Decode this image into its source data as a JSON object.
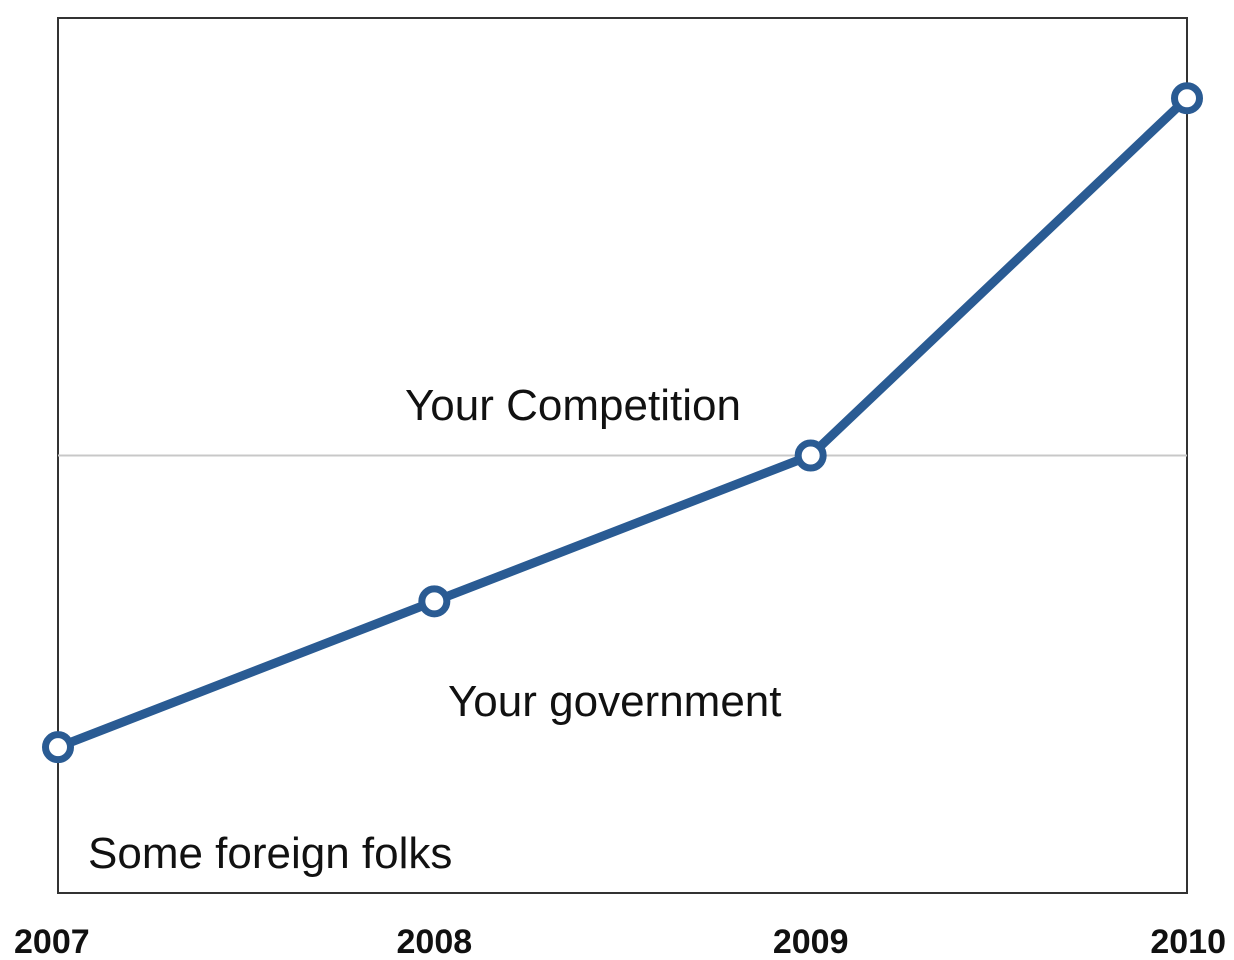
{
  "chart_data": {
    "type": "line",
    "title": "",
    "xlabel": "",
    "ylabel": "",
    "x": [
      "2007",
      "2008",
      "2009",
      "2010"
    ],
    "series": [
      {
        "values": [
          1.0,
          2.0,
          3.0,
          5.45
        ]
      }
    ],
    "ylim": [
      0,
      6.0
    ],
    "reference_line": {
      "y": 3.0,
      "color": "#c8c8c8"
    },
    "annotations": [
      {
        "text": "Your Competition"
      },
      {
        "text": "Your government"
      },
      {
        "text": "Some foreign folks"
      }
    ],
    "grid": false,
    "legend": "none",
    "colors": {
      "line": "#2a5b93",
      "marker_fill": "#ffffff",
      "frame": "#333333"
    }
  }
}
